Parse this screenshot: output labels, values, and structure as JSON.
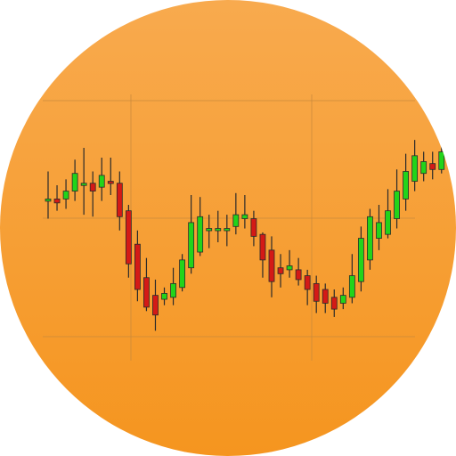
{
  "icon": {
    "name": "candlestick-chart-app-icon",
    "shape": "circle",
    "colors": {
      "background_top": "#F8AA4E",
      "background_bottom": "#F5951F",
      "gridline": "#C98A3C",
      "up_fill": "#22D41A",
      "down_fill": "#D41A16",
      "outline": "#2A2A2A",
      "wick": "#2A2A2A"
    }
  },
  "chart_data": {
    "type": "candlestick",
    "grid": true,
    "candles": [
      {
        "open": 49,
        "close": 50,
        "high": 64,
        "low": 40
      },
      {
        "open": 50,
        "close": 48,
        "high": 57,
        "low": 44
      },
      {
        "open": 50,
        "close": 54,
        "high": 60,
        "low": 45
      },
      {
        "open": 54,
        "close": 63,
        "high": 70,
        "low": 49
      },
      {
        "open": 57,
        "close": 58,
        "high": 76,
        "low": 42
      },
      {
        "open": 58,
        "close": 54,
        "high": 64,
        "low": 41
      },
      {
        "open": 56,
        "close": 62,
        "high": 71,
        "low": 49
      },
      {
        "open": 59,
        "close": 58,
        "high": 71,
        "low": 52
      },
      {
        "open": 58,
        "close": 41,
        "high": 64,
        "low": 34
      },
      {
        "open": 44,
        "close": 17,
        "high": 47,
        "low": 10
      },
      {
        "open": 27,
        "close": 4,
        "high": 34,
        "low": -2
      },
      {
        "open": 10,
        "close": -5,
        "high": 20,
        "low": -7
      },
      {
        "open": 1,
        "close": -9,
        "high": 9,
        "low": -17
      },
      {
        "open": -1,
        "close": 2,
        "high": 5,
        "low": -4
      },
      {
        "open": 0,
        "close": 7,
        "high": 15,
        "low": -4
      },
      {
        "open": 5,
        "close": 19,
        "high": 22,
        "low": 3
      },
      {
        "open": 15,
        "close": 38,
        "high": 52,
        "low": 12
      },
      {
        "open": 23,
        "close": 41,
        "high": 51,
        "low": 21
      },
      {
        "open": 34,
        "close": 35,
        "high": 42,
        "low": 25
      },
      {
        "open": 34,
        "close": 35,
        "high": 44,
        "low": 28
      },
      {
        "open": 34,
        "close": 35,
        "high": 42,
        "low": 26
      },
      {
        "open": 36,
        "close": 42,
        "high": 53,
        "low": 32
      },
      {
        "open": 40,
        "close": 42,
        "high": 52,
        "low": 35
      },
      {
        "open": 40,
        "close": 31,
        "high": 44,
        "low": 26
      },
      {
        "open": 32,
        "close": 19,
        "high": 33,
        "low": 10
      },
      {
        "open": 24,
        "close": 8,
        "high": 31,
        "low": 0
      },
      {
        "open": 15,
        "close": 12,
        "high": 22,
        "low": 5
      },
      {
        "open": 14,
        "close": 16,
        "high": 24,
        "low": 10
      },
      {
        "open": 14,
        "close": 9,
        "high": 20,
        "low": 6
      },
      {
        "open": 11,
        "close": 4,
        "high": 14,
        "low": -4
      },
      {
        "open": 7,
        "close": -2,
        "high": 11,
        "low": -8
      },
      {
        "open": 4,
        "close": -3,
        "high": 7,
        "low": -8
      },
      {
        "open": 0,
        "close": -6,
        "high": 4,
        "low": -10
      },
      {
        "open": -3,
        "close": 1,
        "high": 5,
        "low": -6
      },
      {
        "open": 0,
        "close": 11,
        "high": 22,
        "low": -3
      },
      {
        "open": 8,
        "close": 30,
        "high": 36,
        "low": 3
      },
      {
        "open": 19,
        "close": 41,
        "high": 45,
        "low": 14
      },
      {
        "open": 30,
        "close": 38,
        "high": 47,
        "low": 24
      },
      {
        "open": 32,
        "close": 44,
        "high": 55,
        "low": 30
      },
      {
        "open": 40,
        "close": 54,
        "high": 65,
        "low": 35
      },
      {
        "open": 50,
        "close": 64,
        "high": 73,
        "low": 44
      },
      {
        "open": 59,
        "close": 72,
        "high": 80,
        "low": 54
      },
      {
        "open": 63,
        "close": 69,
        "high": 74,
        "low": 59
      },
      {
        "open": 68,
        "close": 65,
        "high": 74,
        "low": 60
      },
      {
        "open": 65,
        "close": 74,
        "high": 82,
        "low": 63
      },
      {
        "open": 72,
        "close": 68,
        "high": 76,
        "low": 64
      },
      {
        "open": 71,
        "close": 90,
        "high": 96,
        "low": 68
      }
    ]
  }
}
